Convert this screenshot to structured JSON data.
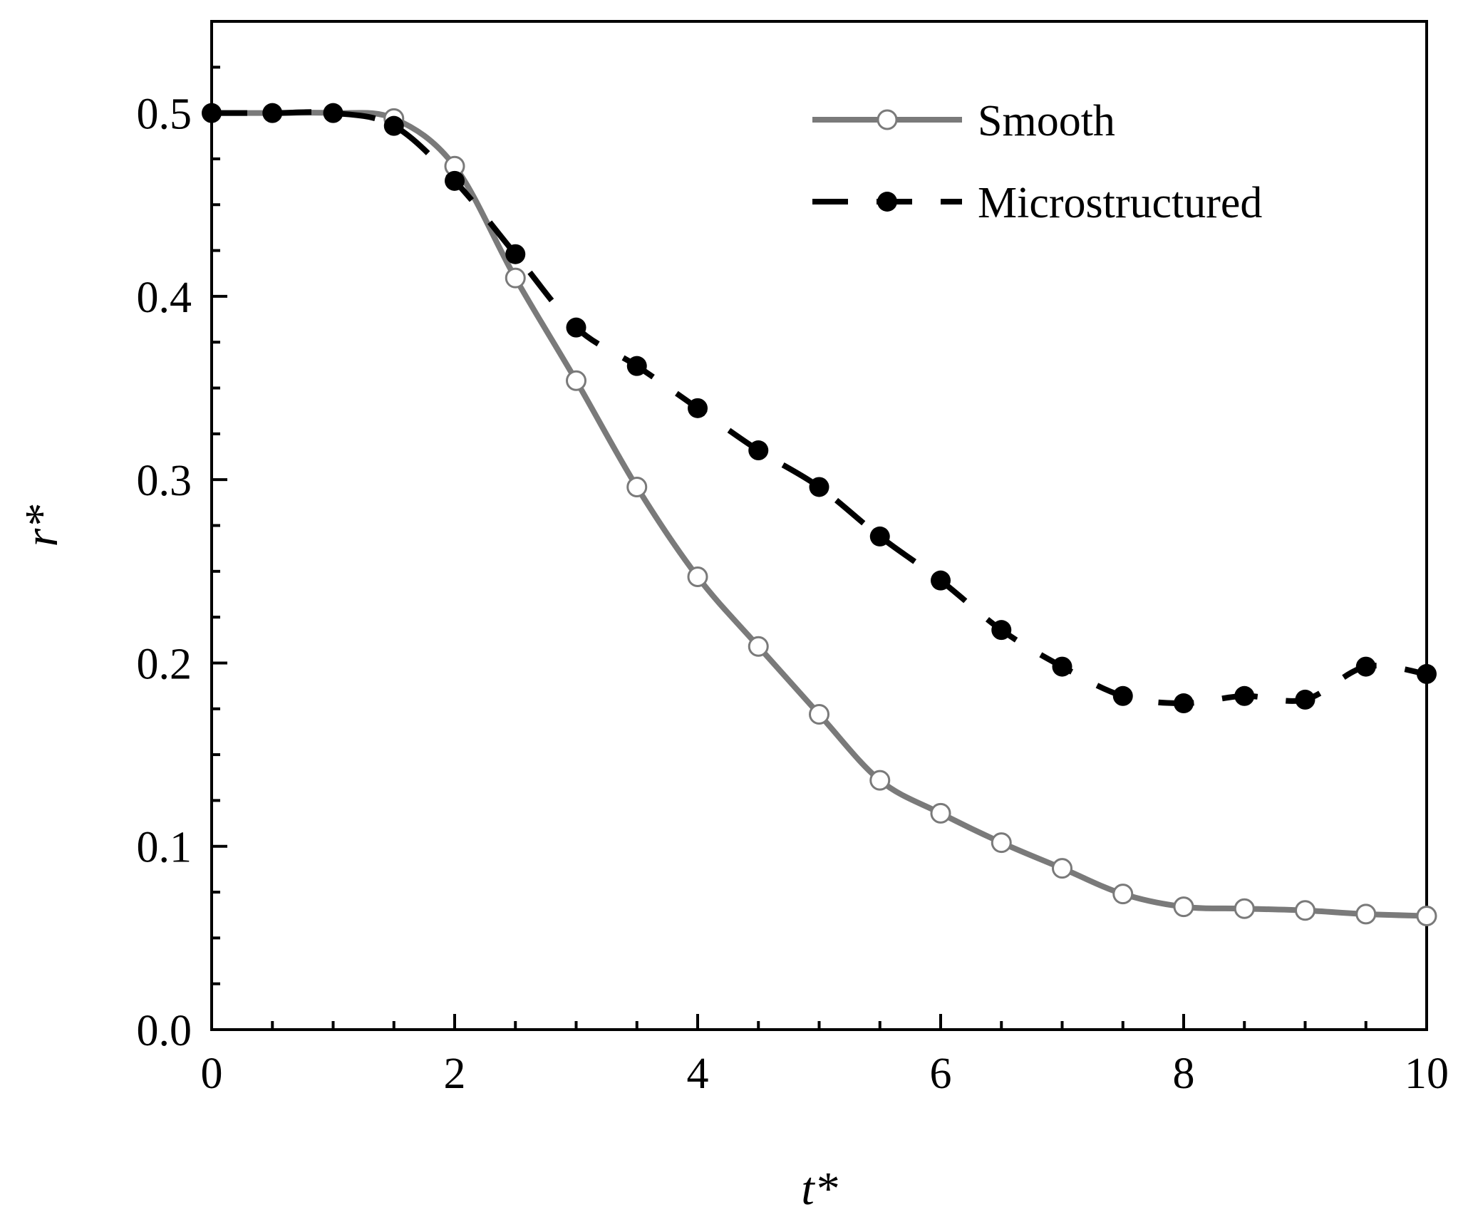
{
  "chart_data": {
    "type": "line",
    "title": "",
    "xlabel": "t*",
    "ylabel": "r*",
    "xlim": [
      0,
      10
    ],
    "ylim": [
      0,
      0.55
    ],
    "xticks": [
      0,
      2,
      4,
      6,
      8,
      10
    ],
    "xtick_labels": [
      "0",
      "2",
      "4",
      "6",
      "8",
      "10"
    ],
    "yticks": [
      0.0,
      0.1,
      0.2,
      0.3,
      0.4,
      0.5
    ],
    "ytick_labels": [
      "0.0",
      "0.1",
      "0.2",
      "0.3",
      "0.4",
      "0.5"
    ],
    "grid": false,
    "legend_position": "top-right",
    "series": [
      {
        "name": "Smooth",
        "style": "solid",
        "marker": "open-circle",
        "color": "#7a7a7a",
        "x": [
          0,
          0.5,
          1,
          1.5,
          2,
          2.5,
          3,
          3.5,
          4,
          4.5,
          5,
          5.5,
          6,
          6.5,
          7,
          7.5,
          8,
          8.5,
          9,
          9.5,
          10
        ],
        "y": [
          0.5,
          0.5,
          0.5,
          0.497,
          0.471,
          0.41,
          0.354,
          0.296,
          0.247,
          0.209,
          0.172,
          0.136,
          0.118,
          0.102,
          0.088,
          0.074,
          0.067,
          0.066,
          0.065,
          0.063,
          0.062
        ],
        "marker_x": [
          1.5,
          2,
          2.5,
          3,
          3.5,
          4,
          4.5,
          5,
          5.5,
          6,
          6.5,
          7,
          7.5,
          8,
          8.5,
          9,
          9.5,
          10
        ],
        "marker_y": [
          0.497,
          0.471,
          0.41,
          0.354,
          0.296,
          0.247,
          0.209,
          0.172,
          0.136,
          0.118,
          0.102,
          0.088,
          0.074,
          0.067,
          0.066,
          0.065,
          0.063,
          0.062
        ]
      },
      {
        "name": "Microstructured",
        "style": "dashed",
        "marker": "filled-circle",
        "color": "#000000",
        "x": [
          0,
          0.5,
          1,
          1.5,
          2,
          2.5,
          3,
          3.5,
          4,
          4.5,
          5,
          5.5,
          6,
          6.5,
          7,
          7.5,
          8,
          8.5,
          9,
          9.5,
          10
        ],
        "y": [
          0.5,
          0.5,
          0.5,
          0.493,
          0.463,
          0.423,
          0.383,
          0.362,
          0.339,
          0.316,
          0.296,
          0.269,
          0.245,
          0.218,
          0.198,
          0.182,
          0.178,
          0.182,
          0.18,
          0.198,
          0.194
        ]
      }
    ]
  }
}
